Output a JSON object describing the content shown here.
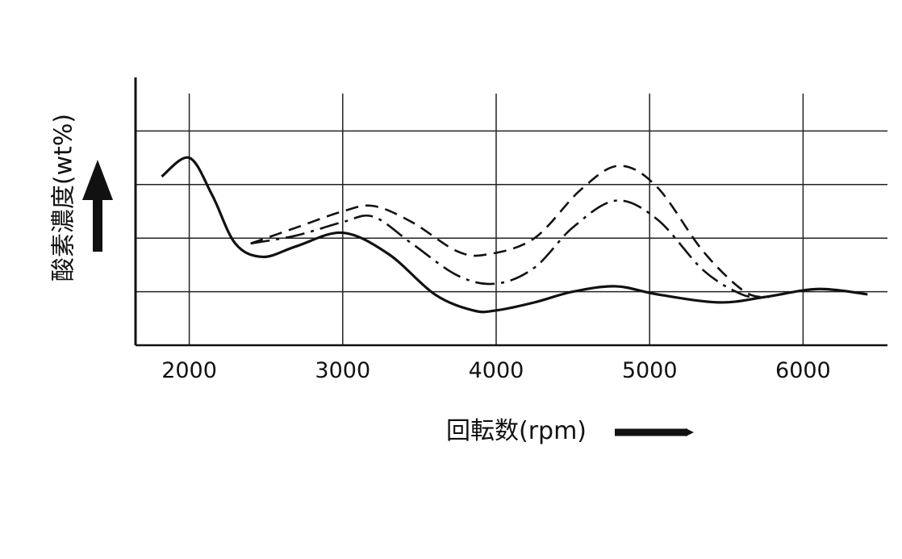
{
  "chart_data": {
    "type": "line",
    "title": "",
    "xlabel": "回転数(rpm)",
    "ylabel": "酸素濃度(wt%)",
    "xlim": [
      1650,
      6550
    ],
    "ylim": [
      0,
      5
    ],
    "x_ticks": [
      2000,
      3000,
      4000,
      5000,
      6000
    ],
    "grid": true,
    "legend": "none",
    "series": [
      {
        "style": "solid",
        "x": [
          1820,
          2000,
          2150,
          2300,
          2480,
          2700,
          3000,
          3300,
          3600,
          3850,
          4000,
          4250,
          4500,
          4780,
          5050,
          5450,
          5750,
          6100,
          6420
        ],
        "y": [
          3.15,
          3.5,
          2.8,
          1.9,
          1.65,
          1.85,
          2.1,
          1.7,
          0.95,
          0.65,
          0.65,
          0.8,
          1.0,
          1.1,
          0.95,
          0.8,
          0.9,
          1.05,
          0.95
        ]
      },
      {
        "style": "dash-dot",
        "x": [
          2400,
          2700,
          3000,
          3200,
          3450,
          3750,
          4000,
          4250,
          4500,
          4780,
          5050,
          5350,
          5600,
          5750
        ],
        "y": [
          1.9,
          2.05,
          2.3,
          2.4,
          1.9,
          1.3,
          1.15,
          1.45,
          2.2,
          2.7,
          2.35,
          1.4,
          0.95,
          0.9
        ]
      },
      {
        "style": "dashed",
        "x": [
          2400,
          2700,
          3000,
          3200,
          3450,
          3750,
          3950,
          4250,
          4550,
          4800,
          5050,
          5350,
          5620,
          5780
        ],
        "y": [
          1.9,
          2.2,
          2.5,
          2.6,
          2.3,
          1.75,
          1.7,
          2.0,
          2.9,
          3.35,
          2.95,
          1.75,
          1.0,
          0.9
        ]
      }
    ]
  }
}
